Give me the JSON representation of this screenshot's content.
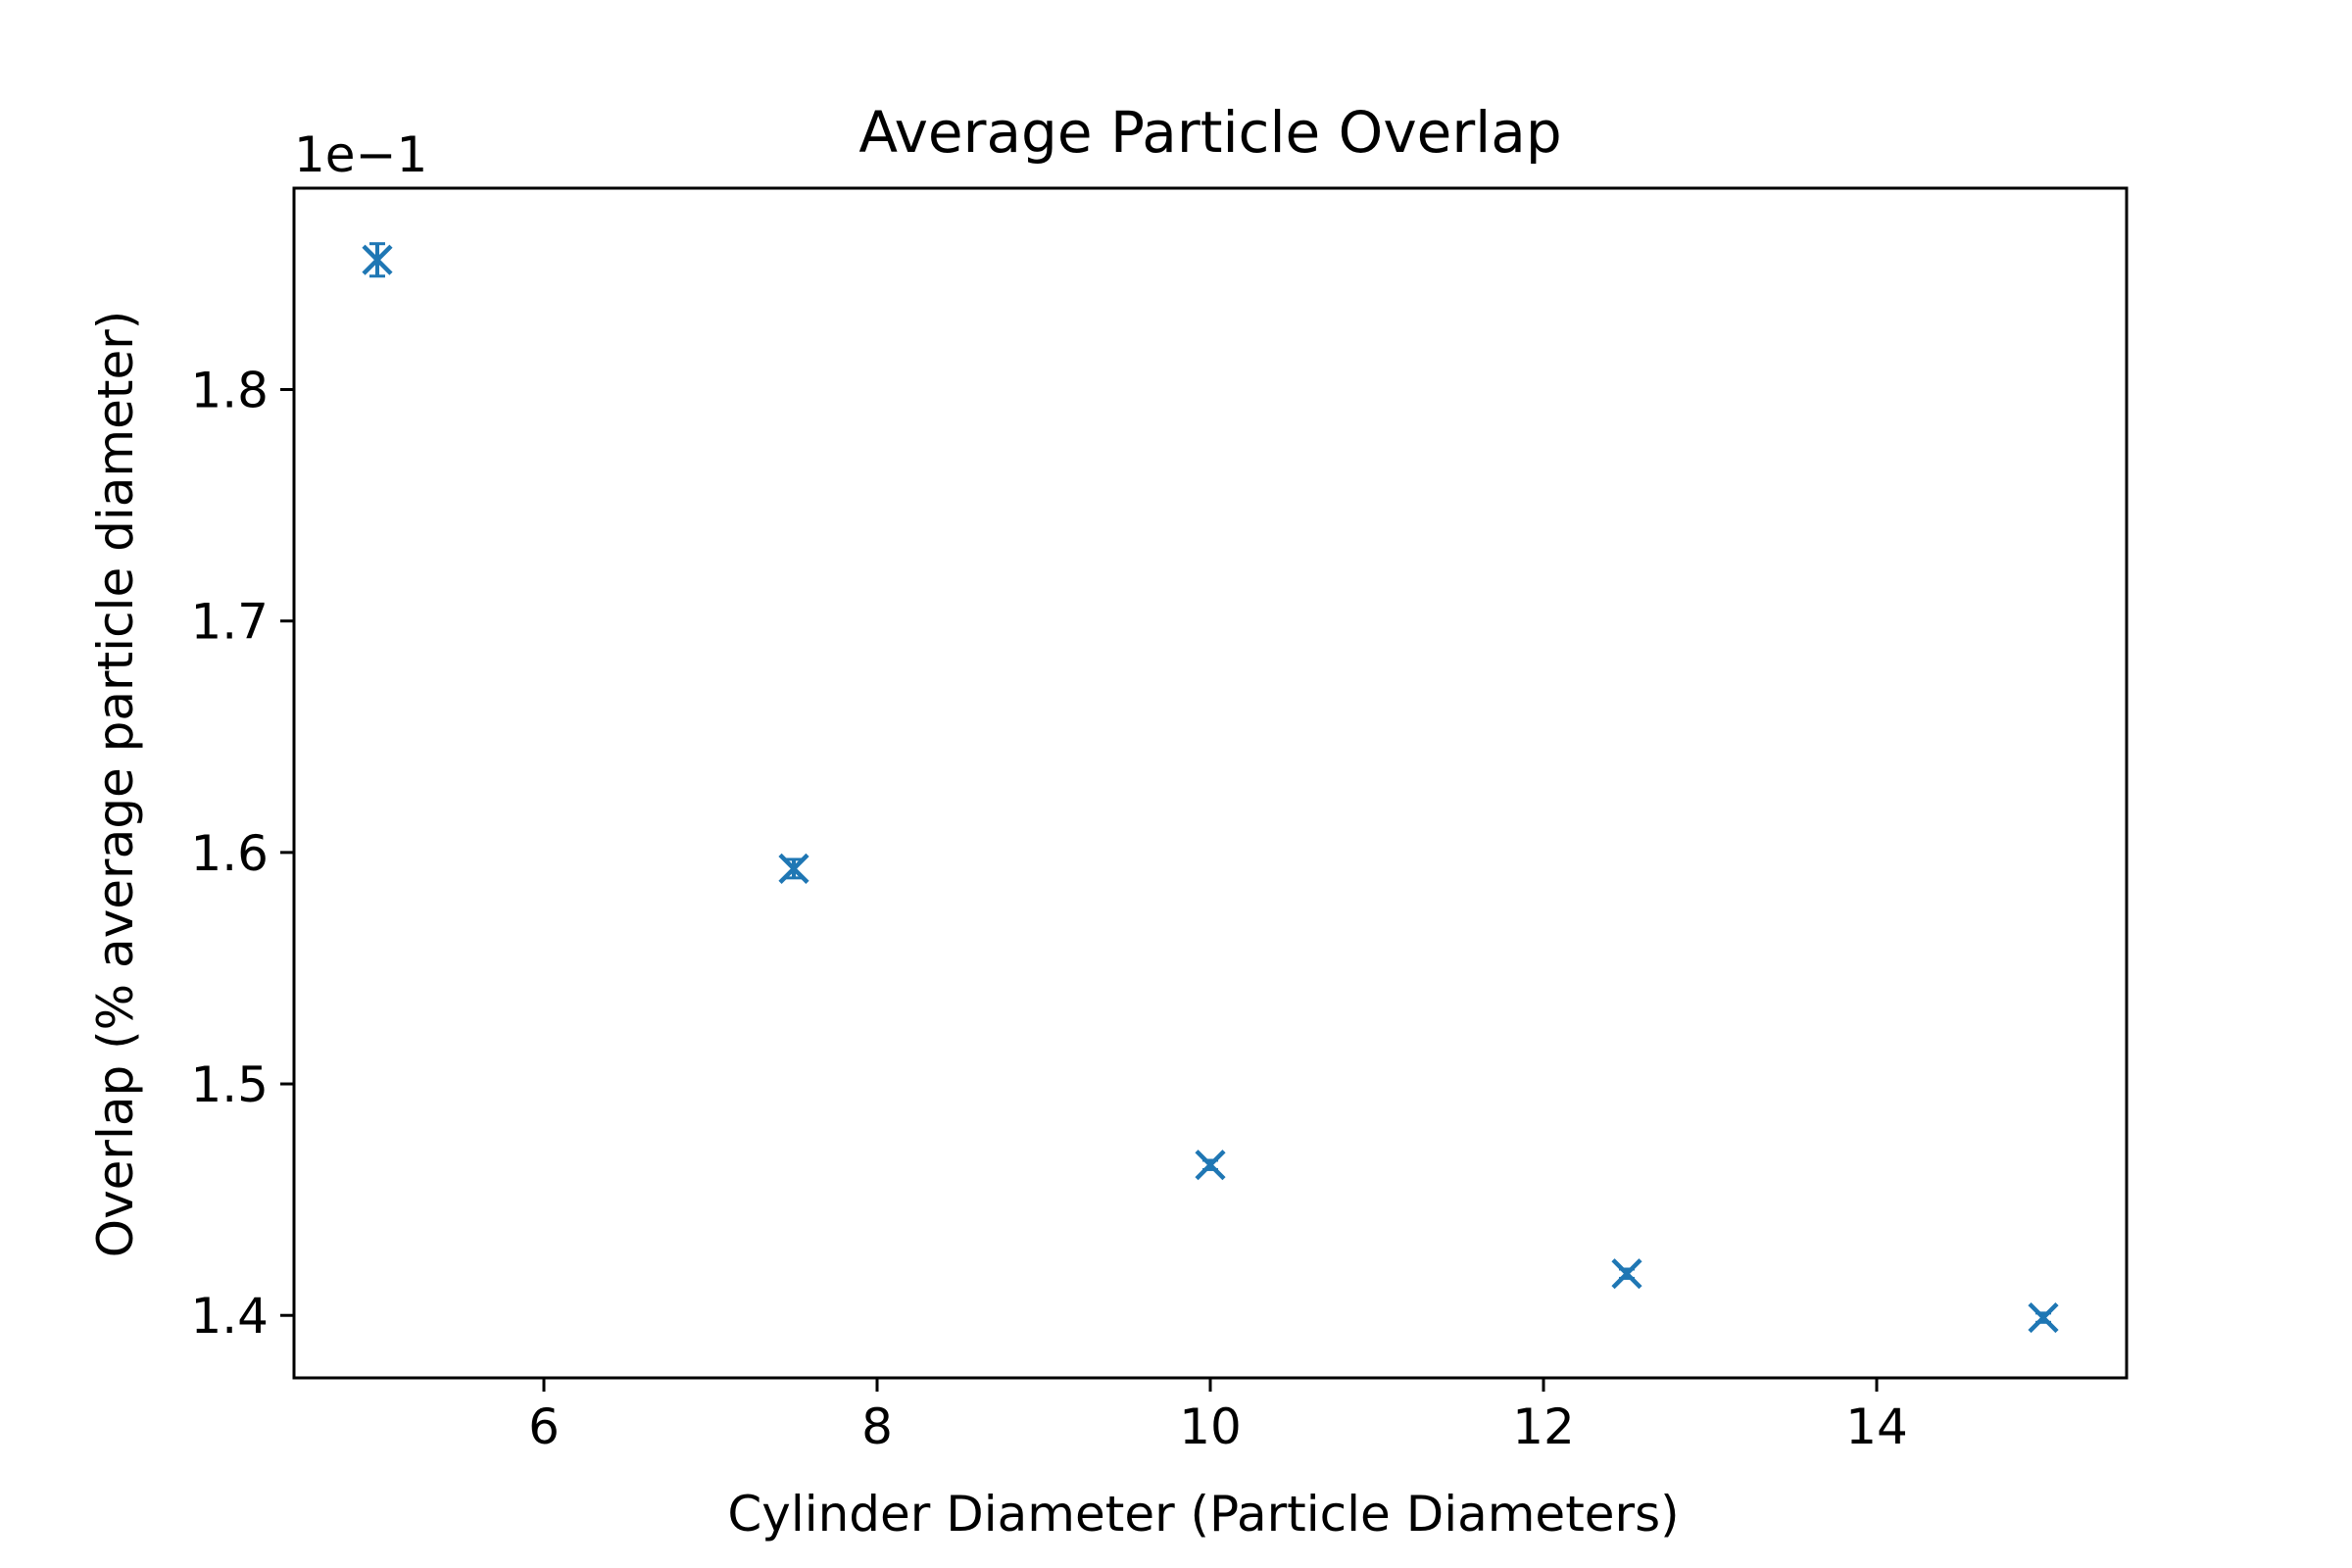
{
  "chart_data": {
    "type": "scatter",
    "title": "Average Particle Overlap",
    "xlabel": "Cylinder Diameter (Particle Diameters)",
    "ylabel": "Overlap (% average particle diameter)",
    "y_offset_label": "1e−1",
    "xlim": [
      4.5,
      15.5
    ],
    "ylim": [
      1.373,
      1.887
    ],
    "x_ticks": [
      6,
      8,
      10,
      12,
      14
    ],
    "x_tick_labels": [
      "6",
      "8",
      "10",
      "12",
      "14"
    ],
    "y_ticks": [
      1.4,
      1.5,
      1.6,
      1.7,
      1.8
    ],
    "y_tick_labels": [
      "1.4",
      "1.5",
      "1.6",
      "1.7",
      "1.8"
    ],
    "grid": false,
    "marker": "x",
    "color": "#1f77b4",
    "series": [
      {
        "x": [
          5,
          7.5,
          10,
          12.5,
          15
        ],
        "y": [
          1.856,
          1.593,
          1.465,
          1.418,
          1.399
        ],
        "y_err": [
          0.007,
          0.004,
          0.002,
          0.002,
          0.002
        ]
      }
    ]
  }
}
